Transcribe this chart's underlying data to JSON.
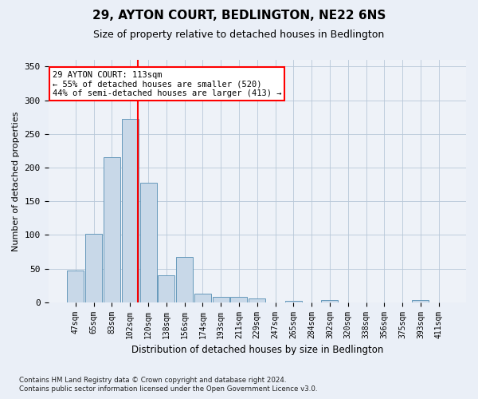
{
  "title1": "29, AYTON COURT, BEDLINGTON, NE22 6NS",
  "title2": "Size of property relative to detached houses in Bedlington",
  "xlabel": "Distribution of detached houses by size in Bedlington",
  "ylabel": "Number of detached properties",
  "footnote1": "Contains HM Land Registry data © Crown copyright and database right 2024.",
  "footnote2": "Contains public sector information licensed under the Open Government Licence v3.0.",
  "bin_labels": [
    "47sqm",
    "65sqm",
    "83sqm",
    "102sqm",
    "120sqm",
    "138sqm",
    "156sqm",
    "174sqm",
    "193sqm",
    "211sqm",
    "229sqm",
    "247sqm",
    "265sqm",
    "284sqm",
    "302sqm",
    "320sqm",
    "338sqm",
    "356sqm",
    "375sqm",
    "393sqm",
    "411sqm"
  ],
  "bar_values": [
    47,
    102,
    215,
    272,
    177,
    40,
    67,
    13,
    8,
    8,
    5,
    0,
    2,
    0,
    3,
    0,
    0,
    0,
    0,
    3,
    0
  ],
  "bar_color": "#c8d8e8",
  "bar_edge_color": "#6699bb",
  "vline_color": "red",
  "vline_pos": 3.45,
  "annotation_text": "29 AYTON COURT: 113sqm\n← 55% of detached houses are smaller (520)\n44% of semi-detached houses are larger (413) →",
  "annotation_box_color": "white",
  "annotation_box_edge": "red",
  "ylim": [
    0,
    360
  ],
  "yticks": [
    0,
    50,
    100,
    150,
    200,
    250,
    300,
    350
  ],
  "background_color": "#eaeff7",
  "plot_bg_color": "#eef2f8"
}
